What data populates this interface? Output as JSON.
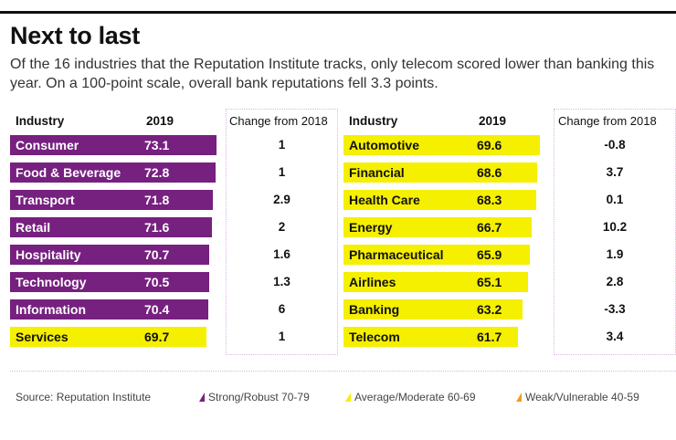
{
  "title": "Next to last",
  "subtitle": "Of the 16 industries that the Reputation Institute tracks, only telecom scored lower than banking this year. On a 100-point scale, overall bank reputations fell 3.3 points.",
  "chart_data": {
    "type": "table",
    "columns": [
      "Industry",
      "2019",
      "Change from 2018"
    ],
    "left": [
      {
        "industry": "Consumer",
        "score": "73.1",
        "change": "1"
      },
      {
        "industry": "Food & Beverage",
        "score": "72.8",
        "change": "1"
      },
      {
        "industry": "Transport",
        "score": "71.8",
        "change": "2.9"
      },
      {
        "industry": "Retail",
        "score": "71.6",
        "change": "2"
      },
      {
        "industry": "Hospitality",
        "score": "70.7",
        "change": "1.6"
      },
      {
        "industry": "Technology",
        "score": "70.5",
        "change": "1.3"
      },
      {
        "industry": "Information",
        "score": "70.4",
        "change": "6"
      },
      {
        "industry": "Services",
        "score": "69.7",
        "change": "1"
      }
    ],
    "right": [
      {
        "industry": "Automotive",
        "score": "69.6",
        "change": "-0.8"
      },
      {
        "industry": "Financial",
        "score": "68.6",
        "change": "3.7"
      },
      {
        "industry": "Health Care",
        "score": "68.3",
        "change": "0.1"
      },
      {
        "industry": "Energy",
        "score": "66.7",
        "change": "10.2"
      },
      {
        "industry": "Pharmaceutical",
        "score": "65.9",
        "change": "1.9"
      },
      {
        "industry": "Airlines",
        "score": "65.1",
        "change": "2.8"
      },
      {
        "industry": "Banking",
        "score": "63.2",
        "change": "-3.3"
      },
      {
        "industry": "Telecom",
        "score": "61.7",
        "change": "3.4"
      }
    ],
    "legend": [
      {
        "label": "Strong/Robust 70-79",
        "color": "#76207f"
      },
      {
        "label": "Average/Moderate 60-69",
        "color": "#f5ef00"
      },
      {
        "label": "Weak/Vulnerable 40-59",
        "color": "#f59a1c"
      }
    ],
    "source": "Source: Reputation Institute"
  }
}
